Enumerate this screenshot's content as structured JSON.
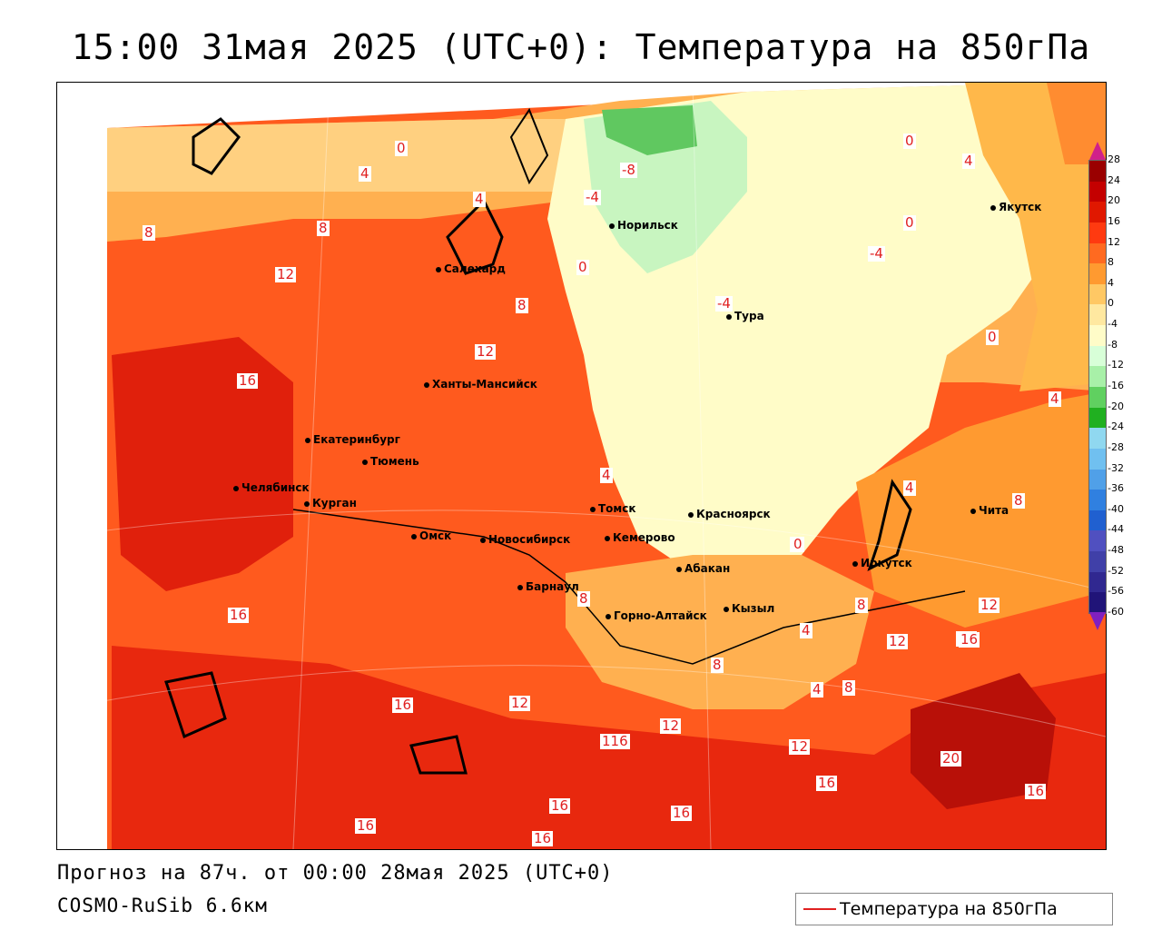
{
  "title": "15:00 31мая 2025 (UTC+0): Температура на 850гПа",
  "footer": {
    "forecast": "Прогноз на 87ч. от 00:00 28мая 2025 (UTC+0)",
    "model": "COSMO-RuSib 6.6км"
  },
  "legend": {
    "label": "Температура на 850гПа",
    "line_color": "#e02020"
  },
  "colorbar": {
    "labels": [
      "28",
      "24",
      "20",
      "16",
      "12",
      "8",
      "4",
      "0",
      "-4",
      "-8",
      "-12",
      "-16",
      "-20",
      "-24",
      "-28",
      "-32",
      "-36",
      "-40",
      "-44",
      "-48",
      "-52",
      "-56",
      "-60"
    ],
    "colors": [
      "#9a0000",
      "#c40000",
      "#e01800",
      "#ff3a10",
      "#ff6a20",
      "#ff9a30",
      "#ffc864",
      "#ffe8a0",
      "#fffcc8",
      "#d8ffd8",
      "#a8f0a8",
      "#60d060",
      "#20b020",
      "#90d8f0",
      "#70c0f0",
      "#50a0e8",
      "#3080e0",
      "#2060d0",
      "#5050c0",
      "#4040a8",
      "#302890",
      "#201478"
    ]
  },
  "cities": [
    {
      "name": "Норильск"
    },
    {
      "name": "Якутск"
    },
    {
      "name": "Салехард"
    },
    {
      "name": "Тура"
    },
    {
      "name": "Ханты-Мансийск"
    },
    {
      "name": "Екатеринбург"
    },
    {
      "name": "Тюмень"
    },
    {
      "name": "Челябинск"
    },
    {
      "name": "Курган"
    },
    {
      "name": "Омск"
    },
    {
      "name": "Новосибирск"
    },
    {
      "name": "Томск"
    },
    {
      "name": "Кемерово"
    },
    {
      "name": "Красноярск"
    },
    {
      "name": "Барнаул"
    },
    {
      "name": "Абакан"
    },
    {
      "name": "Горно-Алтайск"
    },
    {
      "name": "Кызыл"
    },
    {
      "name": "Иркутск"
    },
    {
      "name": "Чита"
    }
  ],
  "isolines": [
    "0",
    "4",
    "4",
    "8",
    "8",
    "12",
    "-8",
    "-4",
    "0",
    "0",
    "4",
    "-4",
    "0",
    "-4",
    "0",
    "8",
    "12",
    "16",
    "4",
    "4",
    "0",
    "4",
    "8",
    "8",
    "12",
    "16",
    "16",
    "16",
    "12",
    "116",
    "12",
    "12",
    "12",
    "16",
    "20",
    "16",
    "16",
    "16",
    "16",
    "16",
    "16",
    "4",
    "8",
    "4",
    "8",
    "8",
    "0"
  ]
}
